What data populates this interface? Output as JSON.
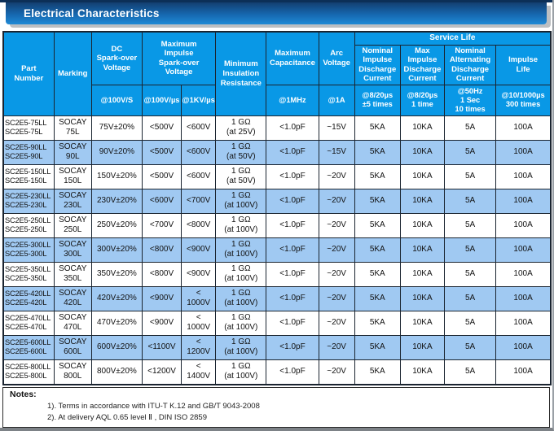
{
  "page": {
    "title": "Electrical Characteristics"
  },
  "colors": {
    "header_blue": "#0998E6",
    "row_alt_blue": "#A0C9F2",
    "title_bar_top": "#133F70",
    "title_bar_bottom": "#1F8AD6",
    "border_dark": "#1A2430"
  },
  "table": {
    "header": {
      "part_number": "Part\nNumber",
      "marking": "Marking",
      "dc_spark_over": "DC\nSpark-over\nVoltage",
      "max_impulse_spark_over": "Maximum\nImpulse\nSpark-over\nVoltage",
      "min_insulation": "Minimum\nInsulation\nResistance",
      "max_capacitance": "Maximum\nCapacitance",
      "arc_voltage": "Arc\nVoltage",
      "service_life": "Service Life",
      "nominal_impulse": "Nominal\nImpulse\nDischarge\nCurrent",
      "max_impulse_discharge": "Max\nImpulse\nDischarge\nCurrent",
      "nominal_alternating": "Nominal\nAlternating\nDischarge\nCurrent",
      "impulse_life": "Impulse\nLife",
      "sub": {
        "dc": "@100V/S",
        "imp100": "@100V/µs",
        "imp1kv": "@1KV/µs",
        "cap": "@1MHz",
        "arc": "@1A",
        "nom_imp": "@8/20µs\n±5 times",
        "max_imp": "@8/20µs\n1 time",
        "nom_alt": "@50Hz\n1 Sec\n10 times",
        "life": "@10/1000µs\n300 times"
      }
    },
    "row_fields": [
      "part",
      "marking",
      "dc",
      "imp100",
      "imp1kv",
      "ins",
      "cap",
      "arc",
      "nom_imp",
      "max_imp",
      "nom_alt",
      "life"
    ],
    "rows": [
      {
        "part": "SC2E5-75LL\nSC2E5-75L",
        "marking": "SOCAY\n75L",
        "dc": "75V±20%",
        "imp100": "<500V",
        "imp1kv": "<600V",
        "ins": "1 GΩ\n(at 25V)",
        "cap": "<1.0pF",
        "arc": "~15V",
        "nom_imp": "5KA",
        "max_imp": "10KA",
        "nom_alt": "5A",
        "life": "100A",
        "shade": false
      },
      {
        "part": "SC2E5-90LL\nSC2E5-90L",
        "marking": "SOCAY\n90L",
        "dc": "90V±20%",
        "imp100": "<500V",
        "imp1kv": "<600V",
        "ins": "1 GΩ\n(at 50V)",
        "cap": "<1.0pF",
        "arc": "~15V",
        "nom_imp": "5KA",
        "max_imp": "10KA",
        "nom_alt": "5A",
        "life": "100A",
        "shade": true
      },
      {
        "part": "SC2E5-150LL\nSC2E5-150L",
        "marking": "SOCAY\n150L",
        "dc": "150V±20%",
        "imp100": "<500V",
        "imp1kv": "<600V",
        "ins": "1 GΩ\n(at 50V)",
        "cap": "<1.0pF",
        "arc": "~20V",
        "nom_imp": "5KA",
        "max_imp": "10KA",
        "nom_alt": "5A",
        "life": "100A",
        "shade": false
      },
      {
        "part": "SC2E5-230LL\nSC2E5-230L",
        "marking": "SOCAY\n230L",
        "dc": "230V±20%",
        "imp100": "<600V",
        "imp1kv": "<700V",
        "ins": "1 GΩ\n(at 100V)",
        "cap": "<1.0pF",
        "arc": "~20V",
        "nom_imp": "5KA",
        "max_imp": "10KA",
        "nom_alt": "5A",
        "life": "100A",
        "shade": true
      },
      {
        "part": "SC2E5-250LL\nSC2E5-250L",
        "marking": "SOCAY\n250L",
        "dc": "250V±20%",
        "imp100": "<700V",
        "imp1kv": "<800V",
        "ins": "1 GΩ\n(at 100V)",
        "cap": "<1.0pF",
        "arc": "~20V",
        "nom_imp": "5KA",
        "max_imp": "10KA",
        "nom_alt": "5A",
        "life": "100A",
        "shade": false
      },
      {
        "part": "SC2E5-300LL\nSC2E5-300L",
        "marking": "SOCAY\n300L",
        "dc": "300V±20%",
        "imp100": "<800V",
        "imp1kv": "<900V",
        "ins": "1 GΩ\n(at 100V)",
        "cap": "<1.0pF",
        "arc": "~20V",
        "nom_imp": "5KA",
        "max_imp": "10KA",
        "nom_alt": "5A",
        "life": "100A",
        "shade": true
      },
      {
        "part": "SC2E5-350LL\nSC2E5-350L",
        "marking": "SOCAY\n350L",
        "dc": "350V±20%",
        "imp100": "<800V",
        "imp1kv": "<900V",
        "ins": "1 GΩ\n(at 100V)",
        "cap": "<1.0pF",
        "arc": "~20V",
        "nom_imp": "5KA",
        "max_imp": "10KA",
        "nom_alt": "5A",
        "life": "100A",
        "shade": false
      },
      {
        "part": "SC2E5-420LL\nSC2E5-420L",
        "marking": "SOCAY\n420L",
        "dc": "420V±20%",
        "imp100": "<900V",
        "imp1kv": "<\n1000V",
        "ins": "1 GΩ\n(at 100V)",
        "cap": "<1.0pF",
        "arc": "~20V",
        "nom_imp": "5KA",
        "max_imp": "10KA",
        "nom_alt": "5A",
        "life": "100A",
        "shade": true
      },
      {
        "part": "SC2E5-470LL\nSC2E5-470L",
        "marking": "SOCAY\n470L",
        "dc": "470V±20%",
        "imp100": "<900V",
        "imp1kv": "<\n1000V",
        "ins": "1 GΩ\n(at 100V)",
        "cap": "<1.0pF",
        "arc": "~20V",
        "nom_imp": "5KA",
        "max_imp": "10KA",
        "nom_alt": "5A",
        "life": "100A",
        "shade": false
      },
      {
        "part": "SC2E5-600LL\nSC2E5-600L",
        "marking": "SOCAY\n600L",
        "dc": "600V±20%",
        "imp100": "<1100V",
        "imp1kv": "<\n1200V",
        "ins": "1 GΩ\n(at 100V)",
        "cap": "<1.0pF",
        "arc": "~20V",
        "nom_imp": "5KA",
        "max_imp": "10KA",
        "nom_alt": "5A",
        "life": "100A",
        "shade": true
      },
      {
        "part": "SC2E5-800LL\nSC2E5-800L",
        "marking": "SOCAY\n800L",
        "dc": "800V±20%",
        "imp100": "<1200V",
        "imp1kv": "<\n1400V",
        "ins": "1 GΩ\n(at 100V)",
        "cap": "<1.0pF",
        "arc": "~20V",
        "nom_imp": "5KA",
        "max_imp": "10KA",
        "nom_alt": "5A",
        "life": "100A",
        "shade": false
      }
    ]
  },
  "notes": {
    "title": "Notes:",
    "items": [
      "1). Terms in accordance with ITU-T K.12 and GB/T 9043-2008",
      "2). At delivery AQL 0.65 level Ⅱ , DIN ISO 2859"
    ]
  }
}
